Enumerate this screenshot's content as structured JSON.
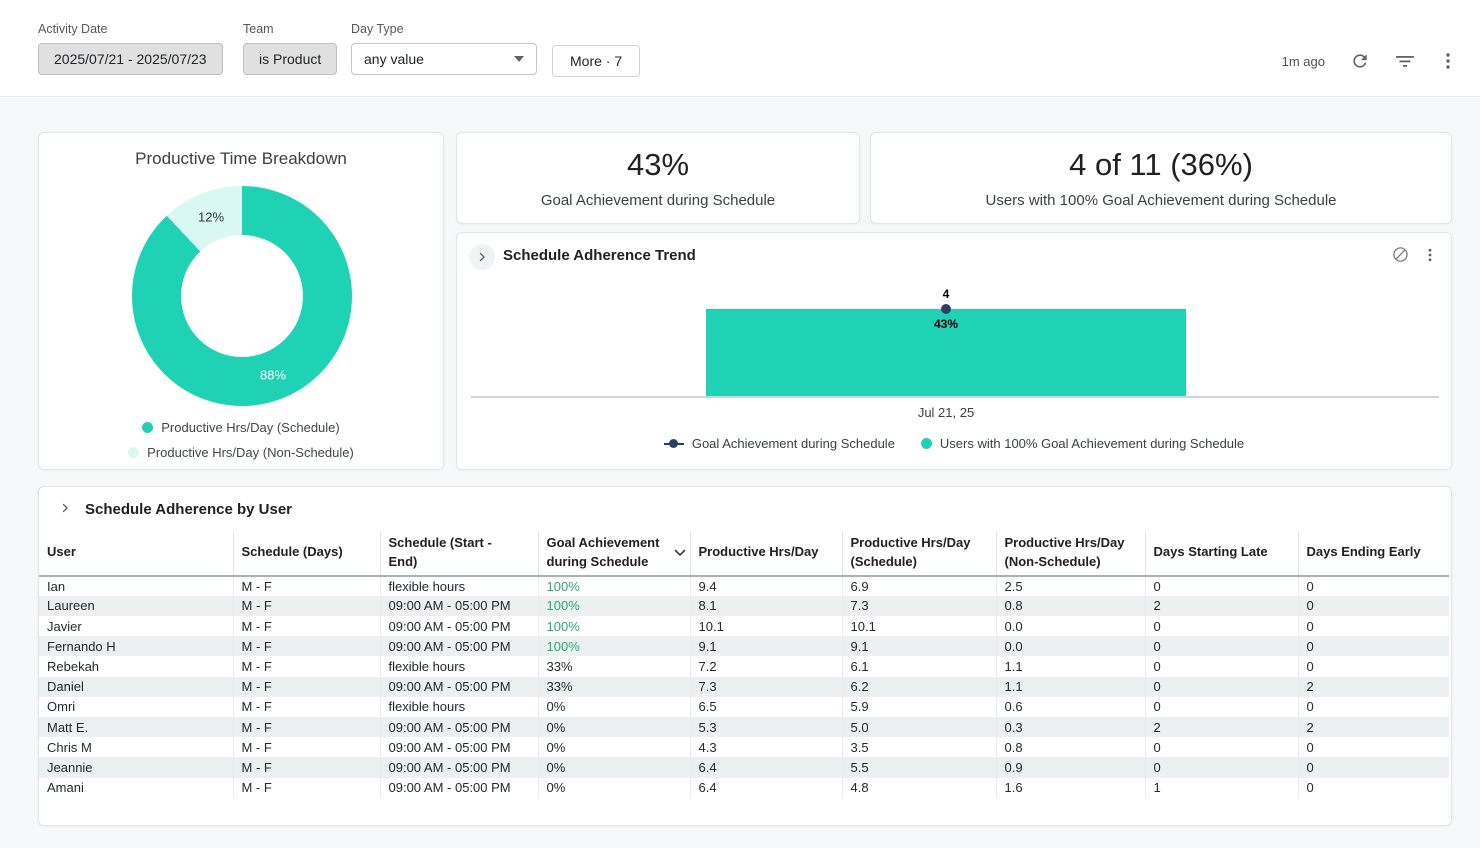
{
  "filter_bar": {
    "activity_date": {
      "label": "Activity Date",
      "value": "2025/07/21 - 2025/07/23"
    },
    "team": {
      "label": "Team",
      "value": "is Product"
    },
    "day_type": {
      "label": "Day Type",
      "value": "any value"
    },
    "more_button": "More · 7",
    "last_refresh": "1m ago"
  },
  "colors": {
    "teal": "#1fd2b4",
    "pale_teal": "#d9f8f3",
    "navy": "#2c3f63",
    "green": "#2aa876"
  },
  "icons": {
    "refresh-icon": "circular-arrow",
    "filter-icon": "filter-lines",
    "kebab-icon": "vertical-dots",
    "caret-down-icon": "triangle-down",
    "expand-chevron-icon": "chevron-right",
    "no-drill-icon": "circle-slash",
    "card-menu-icon": "vertical-dots",
    "sort-desc-icon": "chevron-down"
  },
  "donut_card": {
    "title": "Productive Time Breakdown",
    "slice_labels": [
      "88%",
      "12%"
    ],
    "legend": [
      "Productive Hrs/Day (Schedule)",
      "Productive Hrs/Day (Non-Schedule)"
    ]
  },
  "kpi_goal": {
    "value": "43%",
    "label": "Goal Achievement during Schedule"
  },
  "kpi_users": {
    "value": "4 of 11 (36%)",
    "label": "Users with 100% Goal Achievement during Schedule"
  },
  "trend_card": {
    "title": "Schedule Adherence Trend",
    "bar_value_label": "4",
    "point_value_label": "43%",
    "x_label": "Jul 21, 25",
    "legend": [
      "Goal Achievement during Schedule",
      "Users with 100% Goal Achievement during Schedule"
    ]
  },
  "table_card": {
    "title": "Schedule Adherence by User",
    "columns": [
      {
        "label": "User"
      },
      {
        "label": "Schedule (Days)"
      },
      {
        "label": "Schedule (Start - End)"
      },
      {
        "label": "Goal Achievement during Schedule",
        "sorted": true
      },
      {
        "label": "Productive Hrs/Day"
      },
      {
        "label": "Productive Hrs/Day (Schedule)"
      },
      {
        "label": "Productive Hrs/Day (Non-Schedule)"
      },
      {
        "label": "Days Starting Late"
      },
      {
        "label": "Days Ending Early"
      }
    ],
    "rows": [
      [
        "Ian",
        "M - F",
        "flexible hours",
        "100%",
        "9.4",
        "6.9",
        "2.5",
        "0",
        "0"
      ],
      [
        "Laureen",
        "M - F",
        "09:00 AM - 05:00 PM",
        "100%",
        "8.1",
        "7.3",
        "0.8",
        "2",
        "0"
      ],
      [
        "Javier",
        "M - F",
        "09:00 AM - 05:00 PM",
        "100%",
        "10.1",
        "10.1",
        "0.0",
        "0",
        "0"
      ],
      [
        "Fernando H",
        "M - F",
        "09:00 AM - 05:00 PM",
        "100%",
        "9.1",
        "9.1",
        "0.0",
        "0",
        "0"
      ],
      [
        "Rebekah",
        "M - F",
        "flexible hours",
        "33%",
        "7.2",
        "6.1",
        "1.1",
        "0",
        "0"
      ],
      [
        "Daniel",
        "M - F",
        "09:00 AM - 05:00 PM",
        "33%",
        "7.3",
        "6.2",
        "1.1",
        "0",
        "2"
      ],
      [
        "Omri",
        "M - F",
        "flexible hours",
        "0%",
        "6.5",
        "5.9",
        "0.6",
        "0",
        "0"
      ],
      [
        "Matt E.",
        "M - F",
        "09:00 AM - 05:00 PM",
        "0%",
        "5.3",
        "5.0",
        "0.3",
        "2",
        "2"
      ],
      [
        "Chris M",
        "M - F",
        "09:00 AM - 05:00 PM",
        "0%",
        "4.3",
        "3.5",
        "0.8",
        "0",
        "0"
      ],
      [
        "Jeannie",
        "M - F",
        "09:00 AM - 05:00 PM",
        "0%",
        "6.4",
        "5.5",
        "0.9",
        "0",
        "0"
      ],
      [
        "Amani",
        "M - F",
        "09:00 AM - 05:00 PM",
        "0%",
        "6.4",
        "4.8",
        "1.6",
        "1",
        "0"
      ]
    ]
  },
  "chart_data": [
    {
      "type": "pie",
      "donut": true,
      "title": "Productive Time Breakdown",
      "labels": [
        "Productive Hrs/Day (Schedule)",
        "Productive Hrs/Day (Non-Schedule)"
      ],
      "values": [
        88,
        12
      ],
      "unit": "percent",
      "colors": [
        "#1fd2b4",
        "#d9f8f3"
      ],
      "legend_position": "bottom"
    },
    {
      "type": "bar",
      "title": "Schedule Adherence Trend",
      "categories": [
        "Jul 21, 25"
      ],
      "series": [
        {
          "name": "Users with 100% Goal Achievement during Schedule",
          "type": "bar",
          "values": [
            4
          ],
          "color": "#1fd2b4"
        },
        {
          "name": "Goal Achievement during Schedule",
          "type": "line",
          "values": [
            43
          ],
          "unit": "percent",
          "color": "#2c3f63"
        }
      ],
      "grid": false,
      "legend_position": "bottom"
    }
  ]
}
